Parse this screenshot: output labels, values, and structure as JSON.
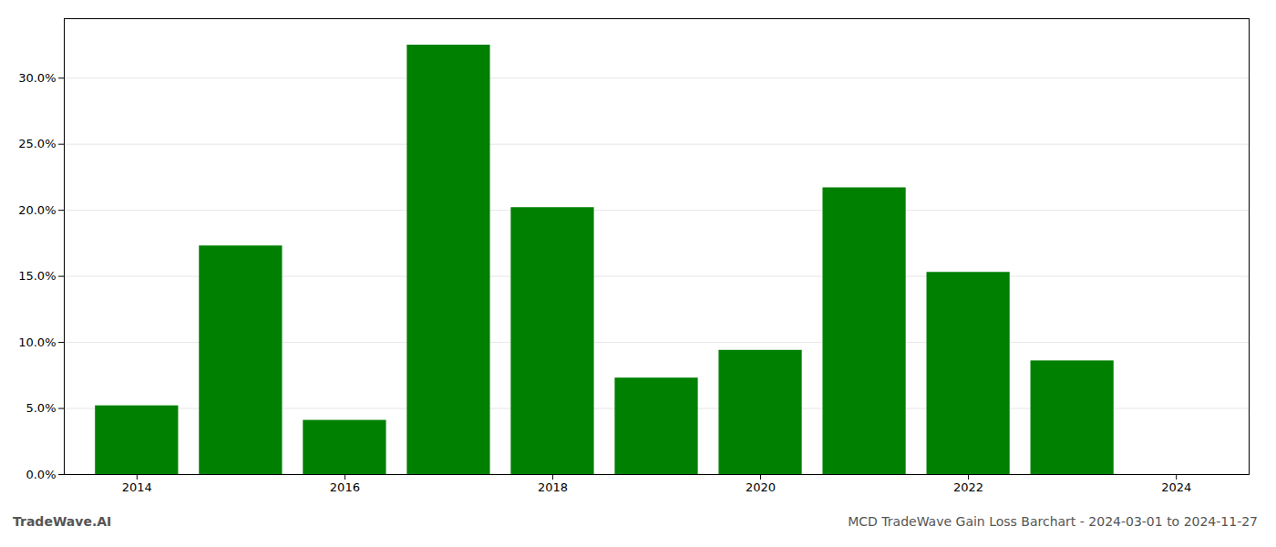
{
  "chart_data": {
    "type": "bar",
    "title": "MCD TradeWave Gain Loss Barchart - 2024-03-01 to 2024-11-27",
    "annotations": [
      "TradeWave.AI"
    ],
    "x": [
      2014,
      2015,
      2016,
      2017,
      2018,
      2019,
      2020,
      2021,
      2022,
      2023
    ],
    "values": [
      0.052,
      0.173,
      0.041,
      0.325,
      0.202,
      0.073,
      0.094,
      0.217,
      0.153,
      0.086
    ],
    "color": "#008000",
    "xlim": [
      2013.3,
      2024.7
    ],
    "xticks": [
      2014,
      2016,
      2018,
      2020,
      2022,
      2024
    ],
    "ylim": [
      0.0,
      0.345
    ],
    "yticks": [
      {
        "value": 0.0,
        "label": "0.0%"
      },
      {
        "value": 0.05,
        "label": "5.0%"
      },
      {
        "value": 0.1,
        "label": "10.0%"
      },
      {
        "value": 0.15,
        "label": "15.0%"
      },
      {
        "value": 0.2,
        "label": "20.0%"
      },
      {
        "value": 0.25,
        "label": "25.0%"
      },
      {
        "value": 0.3,
        "label": "30.0%"
      }
    ],
    "grid": true
  }
}
